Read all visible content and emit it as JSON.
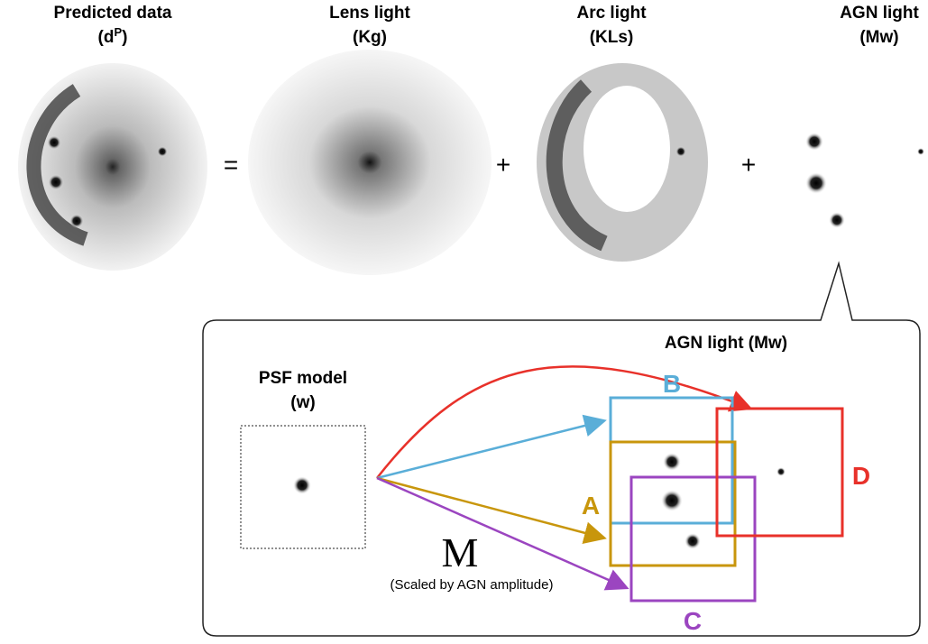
{
  "panels": [
    {
      "title": "Predicted data",
      "label_open": "(d",
      "label_sup": "P",
      "label_close": ")"
    },
    {
      "title": "Lens light",
      "label": "(Kg)"
    },
    {
      "title": "Arc light",
      "label": "(KLs)"
    },
    {
      "title": "AGN light",
      "label": "(Mw)"
    }
  ],
  "operators": [
    "=",
    "+",
    "+"
  ],
  "inset": {
    "title": "AGN light (Mw)",
    "psf_title": "PSF model",
    "psf_label": "(w)",
    "operator": "M",
    "operator_note": "(Scaled by AGN amplitude)",
    "boxes": [
      "A",
      "B",
      "C",
      "D"
    ]
  }
}
